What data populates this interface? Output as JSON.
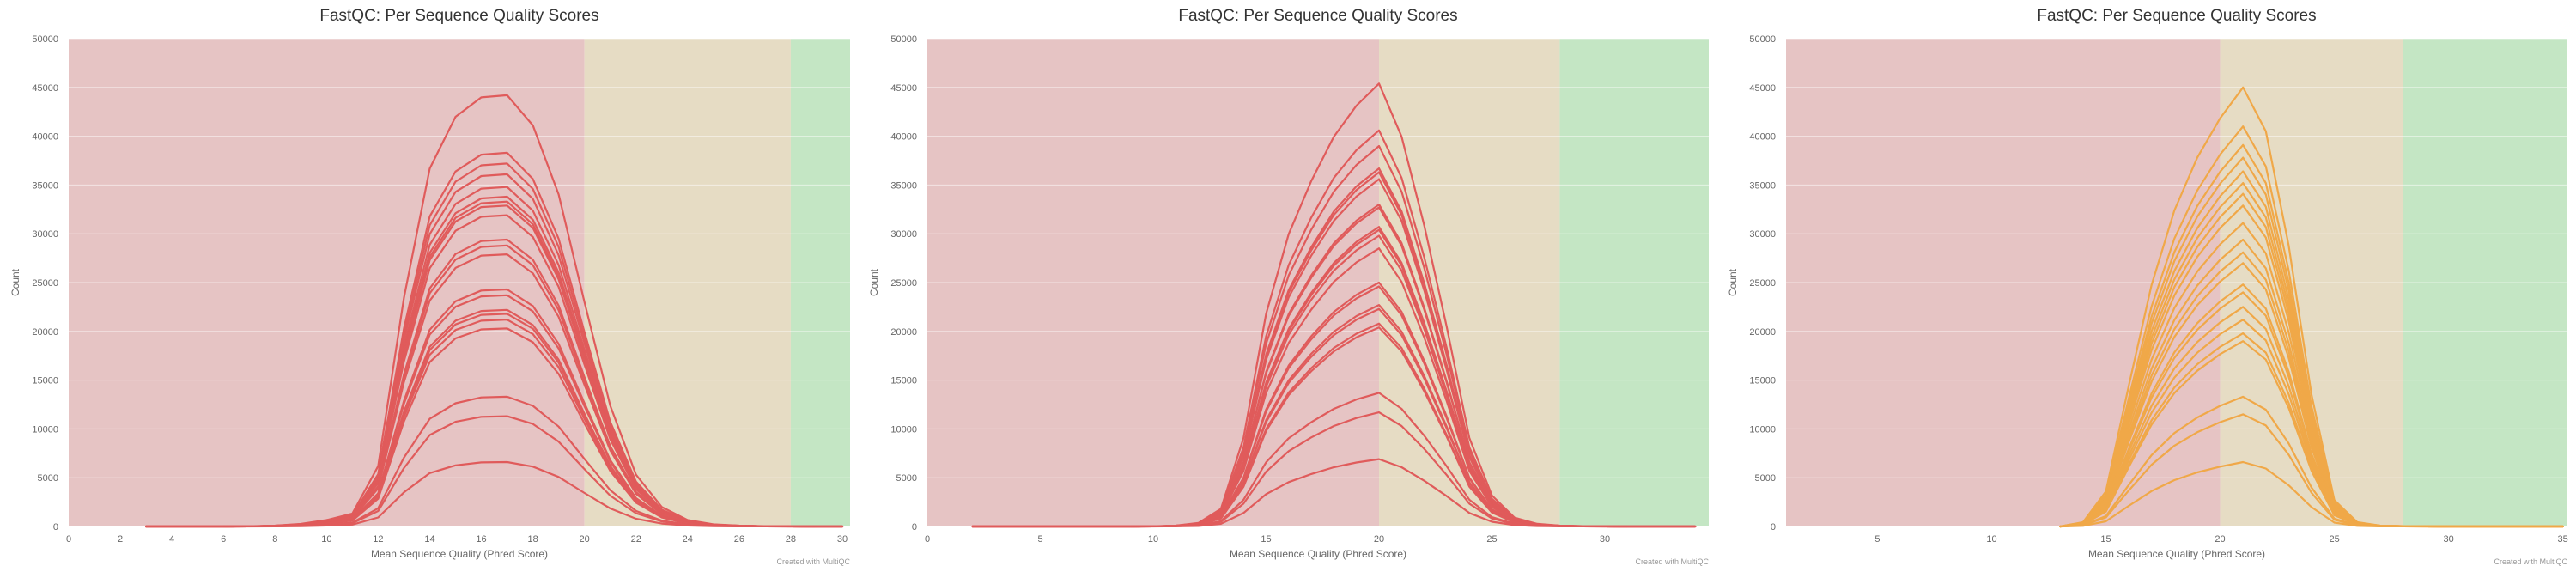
{
  "credit": "Created with MultiQC",
  "chart_data": [
    {
      "type": "line",
      "title": "FastQC: Per Sequence Quality Scores",
      "xlabel": "Mean Sequence Quality (Phred Score)",
      "ylabel": "Count",
      "xlim": [
        0,
        30.3
      ],
      "ylim": [
        0,
        50000
      ],
      "xticks": [
        0,
        2,
        4,
        6,
        8,
        10,
        12,
        14,
        16,
        18,
        20,
        22,
        24,
        26,
        28,
        30
      ],
      "yticks": [
        0,
        5000,
        10000,
        15000,
        20000,
        25000,
        30000,
        35000,
        40000,
        45000,
        50000
      ],
      "bands": [
        {
          "from": 0,
          "to": 20,
          "color": "#e6c4c4"
        },
        {
          "from": 20,
          "to": 28,
          "color": "#e6dcc4"
        },
        {
          "from": 28,
          "to": 30.3,
          "color": "#c4e6c4"
        }
      ],
      "line_color": "#e05b5b",
      "x": [
        3,
        4,
        5,
        6,
        7,
        8,
        9,
        10,
        11,
        12,
        13,
        14,
        15,
        16,
        17,
        18,
        19,
        20,
        21,
        22,
        23,
        24,
        25,
        26,
        27,
        28,
        29,
        30
      ],
      "peaks": [
        44200,
        38300,
        37200,
        36100,
        34800,
        33800,
        33300,
        32900,
        31900,
        29400,
        28800,
        27900,
        24300,
        23700,
        22200,
        21800,
        21200,
        20300,
        13300,
        11300,
        6600
      ],
      "profile": [
        0,
        0,
        0,
        0,
        0.0005,
        0.002,
        0.006,
        0.015,
        0.03,
        0.14,
        0.53,
        0.83,
        0.95,
        0.995,
        1.0,
        0.93,
        0.77,
        0.52,
        0.28,
        0.12,
        0.045,
        0.015,
        0.005,
        0.002,
        0.0008,
        0.0003,
        0.0001,
        0
      ]
    },
    {
      "type": "line",
      "title": "FastQC: Per Sequence Quality Scores",
      "xlabel": "Mean Sequence Quality (Phred Score)",
      "ylabel": "Count",
      "xlim": [
        0,
        34.6
      ],
      "ylim": [
        0,
        50000
      ],
      "xticks": [
        0,
        5,
        10,
        15,
        20,
        25,
        30
      ],
      "yticks": [
        0,
        5000,
        10000,
        15000,
        20000,
        25000,
        30000,
        35000,
        40000,
        45000,
        50000
      ],
      "bands": [
        {
          "from": 0,
          "to": 20,
          "color": "#e6c4c4"
        },
        {
          "from": 20,
          "to": 28,
          "color": "#e6dcc4"
        },
        {
          "from": 28,
          "to": 34.6,
          "color": "#c4e6c4"
        }
      ],
      "line_color": "#e05b5b",
      "x": [
        2,
        3,
        4,
        5,
        6,
        7,
        8,
        9,
        10,
        11,
        12,
        13,
        14,
        15,
        16,
        17,
        18,
        19,
        20,
        21,
        22,
        23,
        24,
        25,
        26,
        27,
        28,
        29,
        30,
        31,
        32,
        33,
        34
      ],
      "peaks": [
        45400,
        40600,
        39000,
        36700,
        36300,
        35600,
        33000,
        32700,
        30700,
        30400,
        29800,
        28500,
        25000,
        24600,
        22700,
        22300,
        20800,
        20400,
        13700,
        11700,
        6900
      ],
      "profile": [
        0,
        0,
        0,
        0,
        0,
        0,
        0,
        0,
        0.0005,
        0.002,
        0.008,
        0.04,
        0.2,
        0.48,
        0.66,
        0.78,
        0.88,
        0.95,
        1.0,
        0.88,
        0.68,
        0.45,
        0.2,
        0.07,
        0.02,
        0.006,
        0.002,
        0.0008,
        0.0003,
        0.0001,
        0,
        0,
        0
      ]
    },
    {
      "type": "line",
      "title": "FastQC: Per Sequence Quality Scores",
      "xlabel": "Mean Sequence Quality (Phred Score)",
      "ylabel": "Count",
      "xlim": [
        1,
        35.2
      ],
      "ylim": [
        0,
        50000
      ],
      "xticks": [
        5,
        10,
        15,
        20,
        25,
        30,
        35
      ],
      "yticks": [
        0,
        5000,
        10000,
        15000,
        20000,
        25000,
        30000,
        35000,
        40000,
        45000,
        50000
      ],
      "bands": [
        {
          "from": 1,
          "to": 20,
          "color": "#e6c4c4"
        },
        {
          "from": 20,
          "to": 28,
          "color": "#e6dcc4"
        },
        {
          "from": 28,
          "to": 35.2,
          "color": "#c4e6c4"
        }
      ],
      "line_color": "#f0a848",
      "x": [
        13,
        14,
        15,
        16,
        17,
        18,
        19,
        20,
        21,
        22,
        23,
        24,
        25,
        26,
        27,
        28,
        29,
        30,
        31,
        32,
        33,
        34,
        35
      ],
      "peaks": [
        45000,
        41000,
        39100,
        37800,
        36400,
        35200,
        34100,
        32900,
        31100,
        29400,
        28100,
        27000,
        24800,
        24000,
        22500,
        21200,
        19800,
        19000,
        13300,
        11500,
        6600
      ],
      "profile": [
        0,
        0.01,
        0.08,
        0.32,
        0.55,
        0.72,
        0.84,
        0.93,
        1.0,
        0.9,
        0.64,
        0.3,
        0.06,
        0.01,
        0.002,
        0.0008,
        0.0003,
        0.0001,
        0,
        0,
        0,
        0,
        0
      ]
    }
  ]
}
